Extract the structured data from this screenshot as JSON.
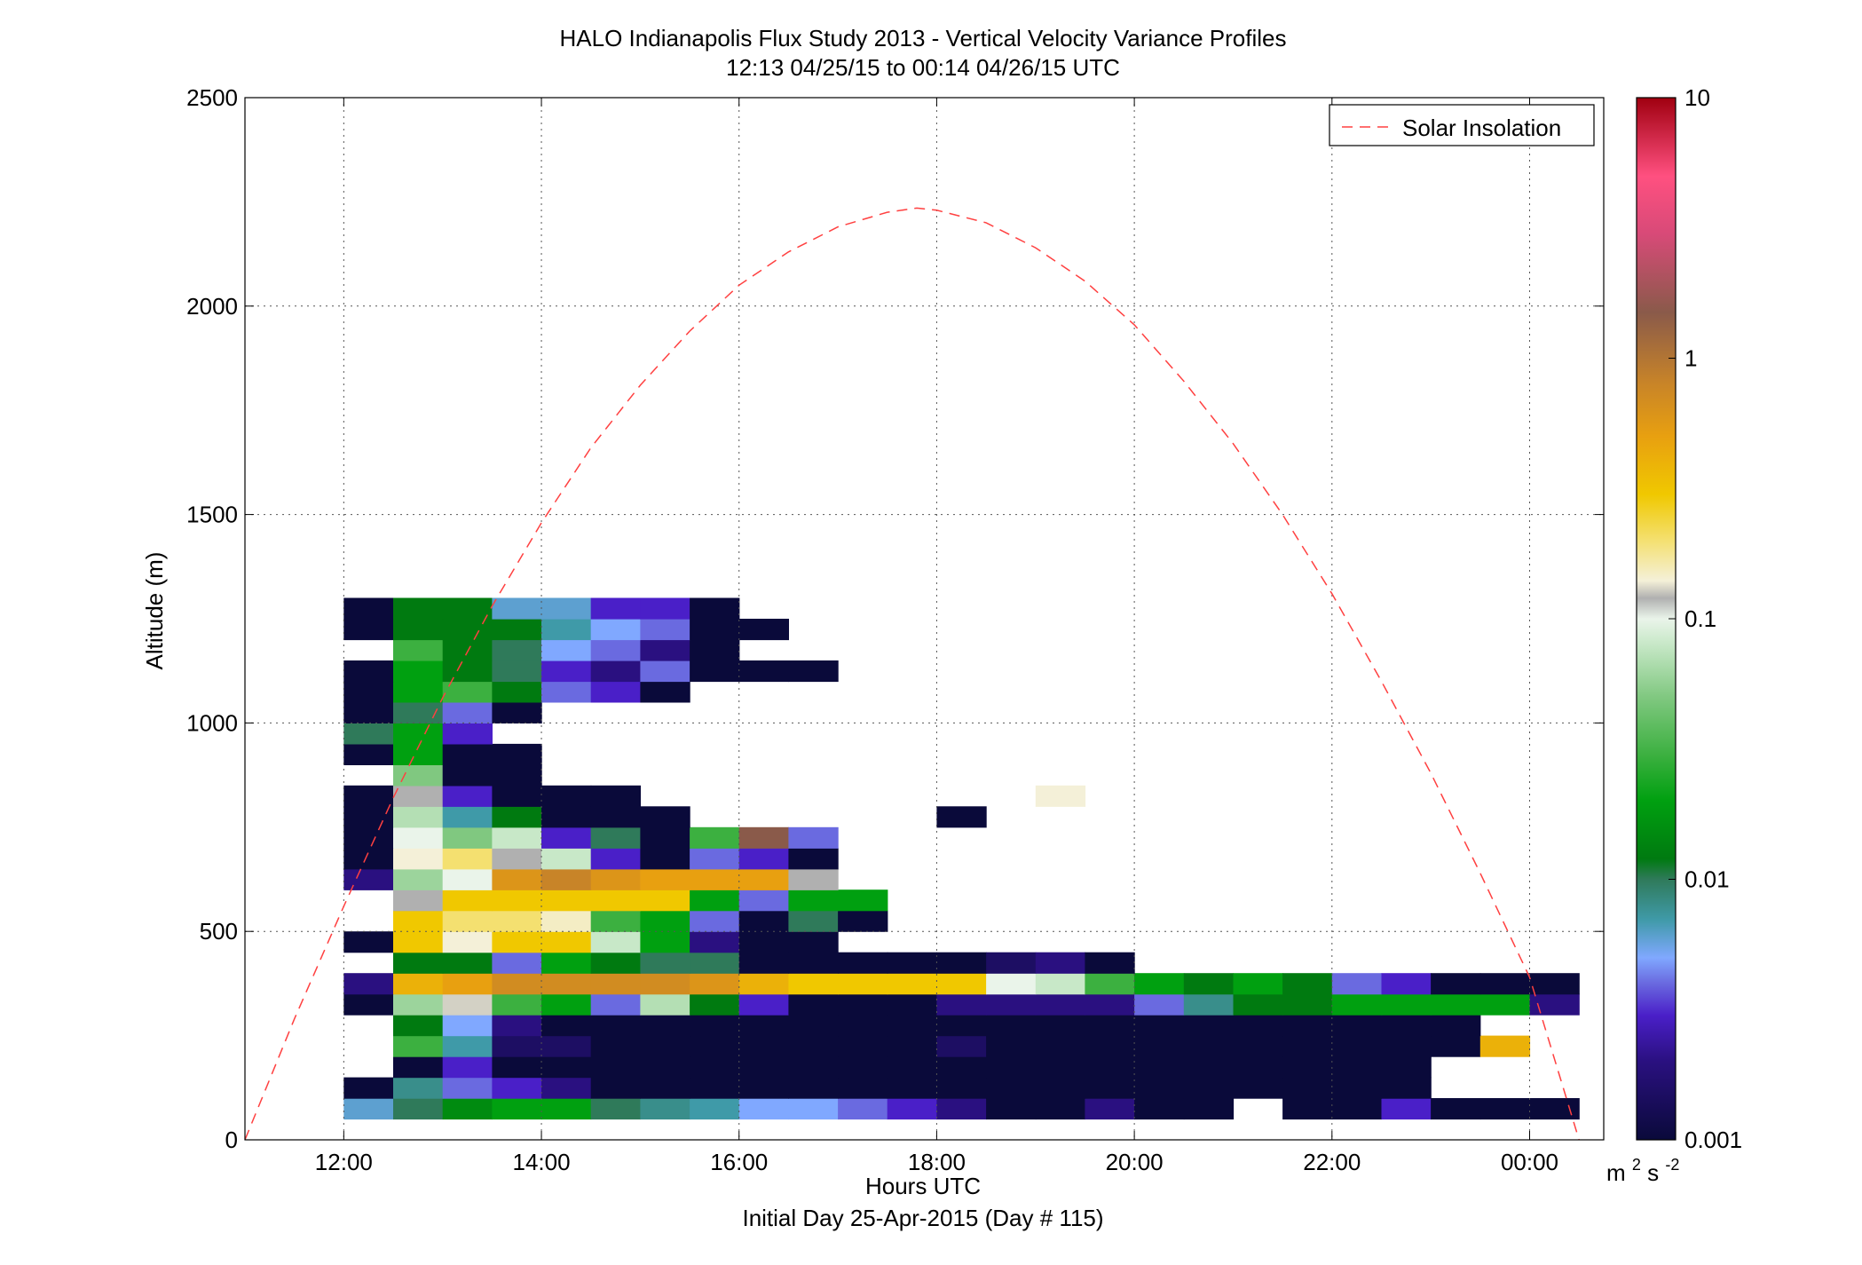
{
  "chart_data": {
    "type": "heatmap",
    "title": "HALO Indianapolis Flux Study 2013 - Vertical Velocity Variance Profiles",
    "subtitle": "12:13 04/25/15 to 00:14 04/26/15  UTC",
    "xlabel": "Hours UTC",
    "xlabel2": "Initial Day 25-Apr-2015 (Day # 115)",
    "ylabel": "Altitude (m)",
    "x_range_hours": [
      11,
      24.75
    ],
    "y_range": [
      0,
      2500
    ],
    "x_ticks": [
      {
        "value": 12,
        "label": "12:00"
      },
      {
        "value": 14,
        "label": "14:00"
      },
      {
        "value": 16,
        "label": "16:00"
      },
      {
        "value": 18,
        "label": "18:00"
      },
      {
        "value": 20,
        "label": "20:00"
      },
      {
        "value": 22,
        "label": "22:00"
      },
      {
        "value": 24,
        "label": "00:00"
      }
    ],
    "y_ticks": [
      0,
      500,
      1000,
      1500,
      2000,
      2500
    ],
    "y_tick_labels": [
      "0",
      "500",
      "1000",
      "1500",
      "2000",
      "2500"
    ],
    "grid": true,
    "legend": {
      "position": "top-right",
      "entries": [
        {
          "name": "Solar Insolation",
          "style": "dashed",
          "color": "#ff4040"
        }
      ]
    },
    "colorbar": {
      "scale": "log",
      "range": [
        0.001,
        10
      ],
      "tick_labels": [
        "0.001",
        "0.01",
        "0.1",
        "1",
        "10"
      ],
      "units_base": "m",
      "units_sup1": "2",
      "units_mid": "s",
      "units_sup2": "-2",
      "colormap_stops": [
        {
          "v": 0.001,
          "c": "#0a0a3a"
        },
        {
          "v": 0.002,
          "c": "#2a1080"
        },
        {
          "v": 0.003,
          "c": "#4a1fc8"
        },
        {
          "v": 0.004,
          "c": "#6a6ae0"
        },
        {
          "v": 0.005,
          "c": "#80a8ff"
        },
        {
          "v": 0.007,
          "c": "#3f9aa8"
        },
        {
          "v": 0.01,
          "c": "#2f7a5a"
        },
        {
          "v": 0.012,
          "c": "#007a10"
        },
        {
          "v": 0.02,
          "c": "#00a010"
        },
        {
          "v": 0.03,
          "c": "#3cb040"
        },
        {
          "v": 0.05,
          "c": "#80c880"
        },
        {
          "v": 0.08,
          "c": "#c8e8c8"
        },
        {
          "v": 0.1,
          "c": "#eaf4ea"
        },
        {
          "v": 0.12,
          "c": "#b0b0b0"
        },
        {
          "v": 0.14,
          "c": "#f4f0d8"
        },
        {
          "v": 0.2,
          "c": "#f4e070"
        },
        {
          "v": 0.3,
          "c": "#f0c800"
        },
        {
          "v": 0.5,
          "c": "#e8a010"
        },
        {
          "v": 0.8,
          "c": "#c88428"
        },
        {
          "v": 1.5,
          "c": "#8a5a4a"
        },
        {
          "v": 3,
          "c": "#d84a78"
        },
        {
          "v": 5,
          "c": "#ff5080"
        },
        {
          "v": 10,
          "c": "#a00010"
        }
      ]
    },
    "time_bins_hours": [
      12.25,
      12.75,
      13.25,
      13.75,
      14.25,
      14.75,
      15.25,
      15.75,
      16.25,
      16.75,
      17.25,
      17.75,
      18.25,
      18.75,
      19.25,
      19.75,
      20.25,
      20.75,
      21.25,
      21.75,
      22.25,
      22.75,
      23.25,
      23.75,
      24.25
    ],
    "altitude_bins_m": [
      75,
      125,
      175,
      225,
      275,
      325,
      375,
      425,
      475,
      525,
      575,
      625,
      675,
      725,
      775,
      825,
      875,
      925,
      975,
      1025,
      1075,
      1125,
      1175,
      1225,
      1275
    ],
    "variance_m2s2": [
      [
        0.006,
        0.01,
        0.015,
        0.02,
        0.02,
        0.01,
        0.008,
        0.007,
        0.005,
        0.005,
        0.004,
        0.003,
        0.002,
        0.001,
        0.001,
        0.002,
        0.001,
        0.001,
        null,
        0.001,
        0.001,
        0.003,
        0.001,
        0.001,
        0.001
      ],
      [
        0.001,
        0.008,
        0.004,
        0.003,
        0.002,
        0.001,
        0.001,
        0.001,
        0.001,
        0.001,
        0.001,
        0.001,
        0.001,
        0.001,
        0.001,
        0.001,
        0.001,
        0.001,
        0.001,
        0.001,
        0.001,
        0.001,
        null,
        null,
        null
      ],
      [
        null,
        0.001,
        0.003,
        0.001,
        0.001,
        0.001,
        0.001,
        0.001,
        0.001,
        0.001,
        0.001,
        0.001,
        0.001,
        0.001,
        0.001,
        0.001,
        0.001,
        0.001,
        0.001,
        0.001,
        0.001,
        0.001,
        null,
        null,
        null
      ],
      [
        null,
        0.03,
        0.007,
        0.0015,
        0.0015,
        0.001,
        0.001,
        0.001,
        0.001,
        0.001,
        0.001,
        0.001,
        0.0015,
        0.001,
        0.001,
        0.001,
        0.001,
        0.001,
        0.001,
        0.001,
        0.001,
        0.001,
        0.001,
        0.4,
        null
      ],
      [
        null,
        0.012,
        0.005,
        0.002,
        0.001,
        0.001,
        0.001,
        0.001,
        0.001,
        0.001,
        0.001,
        0.001,
        0.001,
        0.001,
        0.001,
        0.001,
        0.001,
        0.001,
        0.001,
        0.001,
        0.001,
        0.001,
        0.001,
        null,
        null
      ],
      [
        0.001,
        0.06,
        0.13,
        0.03,
        0.02,
        0.004,
        0.07,
        0.012,
        0.003,
        0.001,
        0.001,
        0.001,
        0.002,
        0.002,
        0.002,
        0.002,
        0.004,
        0.008,
        0.012,
        0.012,
        0.02,
        0.02,
        0.02,
        0.02,
        0.002
      ],
      [
        0.002,
        0.4,
        0.5,
        0.7,
        0.7,
        0.7,
        0.7,
        0.6,
        0.4,
        0.3,
        0.3,
        0.3,
        0.3,
        0.1,
        0.08,
        0.03,
        0.02,
        0.012,
        0.02,
        0.012,
        0.004,
        0.003,
        0.001,
        0.001,
        0.001
      ],
      [
        null,
        0.012,
        0.012,
        0.004,
        0.02,
        0.012,
        0.01,
        0.01,
        0.001,
        0.001,
        0.001,
        0.001,
        0.001,
        0.0015,
        0.002,
        0.001,
        null,
        null,
        null,
        null,
        null,
        null,
        null,
        null,
        null
      ],
      [
        0.001,
        0.3,
        0.14,
        0.3,
        0.3,
        0.08,
        0.02,
        0.002,
        0.001,
        0.001,
        null,
        null,
        null,
        null,
        null,
        null,
        null,
        null,
        null,
        null,
        null,
        null,
        null,
        null,
        null
      ],
      [
        null,
        0.3,
        0.2,
        0.2,
        0.15,
        0.03,
        0.02,
        0.004,
        0.001,
        0.01,
        0.001,
        null,
        null,
        null,
        null,
        null,
        null,
        null,
        null,
        null,
        null,
        null,
        null,
        null,
        null
      ],
      [
        null,
        0.12,
        0.3,
        0.3,
        0.3,
        0.3,
        0.3,
        0.02,
        0.004,
        0.02,
        0.02,
        null,
        null,
        null,
        null,
        null,
        null,
        null,
        null,
        null,
        null,
        null,
        null,
        null,
        null
      ],
      [
        0.002,
        0.06,
        0.1,
        0.6,
        0.8,
        0.6,
        0.5,
        0.5,
        0.5,
        0.12,
        null,
        null,
        null,
        null,
        null,
        null,
        null,
        null,
        null,
        null,
        null,
        null,
        null,
        null,
        null
      ],
      [
        0.001,
        0.14,
        0.2,
        0.12,
        0.08,
        0.003,
        0.001,
        0.004,
        0.003,
        0.001,
        null,
        null,
        null,
        null,
        null,
        null,
        null,
        null,
        null,
        null,
        null,
        null,
        null,
        null,
        null
      ],
      [
        0.001,
        0.1,
        0.05,
        0.08,
        0.003,
        0.01,
        0.001,
        0.03,
        1.5,
        0.004,
        null,
        null,
        null,
        null,
        null,
        null,
        null,
        null,
        null,
        null,
        null,
        null,
        null,
        null,
        null
      ],
      [
        0.001,
        0.07,
        0.007,
        0.012,
        0.001,
        0.001,
        0.001,
        null,
        null,
        null,
        null,
        null,
        0.001,
        null,
        null,
        null,
        null,
        null,
        null,
        null,
        null,
        null,
        null,
        null,
        null
      ],
      [
        0.001,
        0.12,
        0.003,
        0.001,
        0.001,
        0.001,
        null,
        null,
        null,
        null,
        null,
        null,
        null,
        null,
        0.14,
        null,
        null,
        null,
        null,
        null,
        null,
        null,
        null,
        null,
        null
      ],
      [
        null,
        0.05,
        0.001,
        0.001,
        null,
        null,
        null,
        null,
        null,
        null,
        null,
        null,
        null,
        null,
        null,
        null,
        null,
        null,
        null,
        null,
        null,
        null,
        null,
        null,
        null
      ],
      [
        0.001,
        0.02,
        0.001,
        0.001,
        null,
        null,
        null,
        null,
        null,
        null,
        null,
        null,
        null,
        null,
        null,
        null,
        null,
        null,
        null,
        null,
        null,
        null,
        null,
        null,
        null
      ],
      [
        0.01,
        0.02,
        0.003,
        null,
        null,
        null,
        null,
        null,
        null,
        null,
        null,
        null,
        null,
        null,
        null,
        null,
        null,
        null,
        null,
        null,
        null,
        null,
        null,
        null,
        null
      ],
      [
        0.001,
        0.01,
        0.004,
        0.001,
        null,
        null,
        null,
        null,
        null,
        null,
        null,
        null,
        null,
        null,
        null,
        null,
        null,
        null,
        null,
        null,
        null,
        null,
        null,
        null,
        null
      ],
      [
        0.001,
        0.02,
        0.03,
        0.012,
        0.004,
        0.003,
        0.001,
        null,
        null,
        null,
        null,
        null,
        null,
        null,
        null,
        null,
        null,
        null,
        null,
        null,
        null,
        null,
        null,
        null,
        null
      ],
      [
        0.001,
        0.02,
        0.012,
        0.01,
        0.003,
        0.002,
        0.004,
        0.001,
        0.001,
        0.001,
        null,
        null,
        null,
        null,
        null,
        null,
        null,
        null,
        null,
        null,
        null,
        null,
        null,
        null,
        null
      ],
      [
        null,
        0.03,
        0.012,
        0.01,
        0.005,
        0.004,
        0.002,
        0.001,
        null,
        null,
        null,
        null,
        null,
        null,
        null,
        null,
        null,
        null,
        null,
        null,
        null,
        null,
        null,
        null,
        null
      ],
      [
        0.001,
        0.012,
        0.012,
        0.012,
        0.007,
        0.005,
        0.004,
        0.001,
        0.001,
        null,
        null,
        null,
        null,
        null,
        null,
        null,
        null,
        null,
        null,
        null,
        null,
        null,
        null,
        null,
        null
      ],
      [
        0.001,
        0.012,
        0.012,
        0.006,
        0.006,
        0.003,
        0.003,
        0.001,
        null,
        null,
        null,
        null,
        null,
        null,
        null,
        null,
        null,
        null,
        null,
        null,
        null,
        null,
        null,
        null,
        null
      ]
    ],
    "solar_insolation_curve": {
      "name": "Solar Insolation",
      "points": [
        {
          "x": 11.0,
          "y": 0
        },
        {
          "x": 11.5,
          "y": 290
        },
        {
          "x": 12.0,
          "y": 560
        },
        {
          "x": 12.5,
          "y": 820
        },
        {
          "x": 13.0,
          "y": 1060
        },
        {
          "x": 13.5,
          "y": 1280
        },
        {
          "x": 14.0,
          "y": 1480
        },
        {
          "x": 14.5,
          "y": 1660
        },
        {
          "x": 15.0,
          "y": 1810
        },
        {
          "x": 15.5,
          "y": 1940
        },
        {
          "x": 16.0,
          "y": 2050
        },
        {
          "x": 16.5,
          "y": 2130
        },
        {
          "x": 17.0,
          "y": 2190
        },
        {
          "x": 17.5,
          "y": 2225
        },
        {
          "x": 17.8,
          "y": 2235
        },
        {
          "x": 18.0,
          "y": 2230
        },
        {
          "x": 18.5,
          "y": 2200
        },
        {
          "x": 19.0,
          "y": 2140
        },
        {
          "x": 19.5,
          "y": 2060
        },
        {
          "x": 20.0,
          "y": 1955
        },
        {
          "x": 20.5,
          "y": 1820
        },
        {
          "x": 21.0,
          "y": 1670
        },
        {
          "x": 21.5,
          "y": 1500
        },
        {
          "x": 22.0,
          "y": 1310
        },
        {
          "x": 22.5,
          "y": 1100
        },
        {
          "x": 23.0,
          "y": 880
        },
        {
          "x": 23.5,
          "y": 640
        },
        {
          "x": 24.0,
          "y": 390
        },
        {
          "x": 24.5,
          "y": 0
        }
      ]
    }
  }
}
